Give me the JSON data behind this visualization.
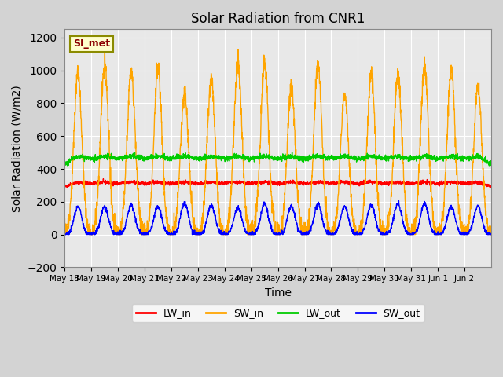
{
  "title": "Solar Radiation from CNR1",
  "xlabel": "Time",
  "ylabel": "Solar Radiation (W/m2)",
  "ylim": [
    -200,
    1250
  ],
  "yticks": [
    -200,
    0,
    200,
    400,
    600,
    800,
    1000,
    1200
  ],
  "xtick_labels": [
    "May 18",
    "May 19",
    "May 20",
    "May 21",
    "May 22",
    "May 23",
    "May 24",
    "May 25",
    "May 26",
    "May 27",
    "May 28",
    "May 29",
    "May 30",
    "May 31",
    "Jun 1",
    "Jun 2"
  ],
  "colors": {
    "LW_in": "#ff0000",
    "SW_in": "#ffa500",
    "LW_out": "#00cc00",
    "SW_out": "#0000ff"
  },
  "legend_label": "SI_met",
  "background_color": "#d3d3d3",
  "plot_bg_color": "#e8e8e8",
  "grid_color": "#ffffff",
  "num_days": 16,
  "sw_in_max": 1000,
  "sw_out_max": 185
}
